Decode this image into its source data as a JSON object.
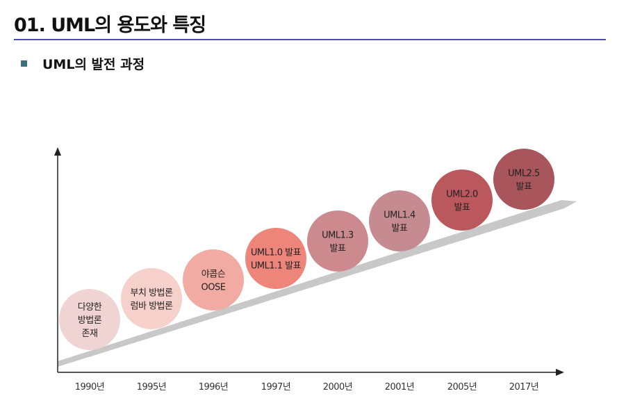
{
  "page": {
    "title": "01. UML의 용도와 특징",
    "section_label": "UML의 발전 과정"
  },
  "timeline": {
    "years": [
      "1990년",
      "1995년",
      "1996년",
      "1997년",
      "2000년",
      "2001년",
      "2005년",
      "2017년"
    ],
    "stages": [
      {
        "lines": [
          "다양한",
          "방법론",
          "존재"
        ],
        "color": "#f0d4d4",
        "text_color": "#222222"
      },
      {
        "lines": [
          "부치 방법론",
          "럼바 방법론"
        ],
        "color": "#f6d0cb",
        "text_color": "#222222"
      },
      {
        "lines": [
          "야콥슨",
          "OOSE"
        ],
        "color": "#f2aba2",
        "text_color": "#222222"
      },
      {
        "lines": [
          "UML1.0 발표",
          "UML1.1 발표"
        ],
        "color": "#ee857b",
        "text_color": "#222222"
      },
      {
        "lines": [
          "UML1.3",
          "발표"
        ],
        "color": "#cc8a8f",
        "text_color": "#222222"
      },
      {
        "lines": [
          "UML1.4",
          "발표"
        ],
        "color": "#c58b91",
        "text_color": "#222222"
      },
      {
        "lines": [
          "UML2.0",
          "발표"
        ],
        "color": "#bb585e",
        "text_color": "#222222"
      },
      {
        "lines": [
          "UML2.5",
          "발표"
        ],
        "color": "#a9555c",
        "text_color": "#222222"
      }
    ],
    "colors": {
      "axis": "#222222",
      "trend_arrow": "#c8c8c8"
    }
  }
}
